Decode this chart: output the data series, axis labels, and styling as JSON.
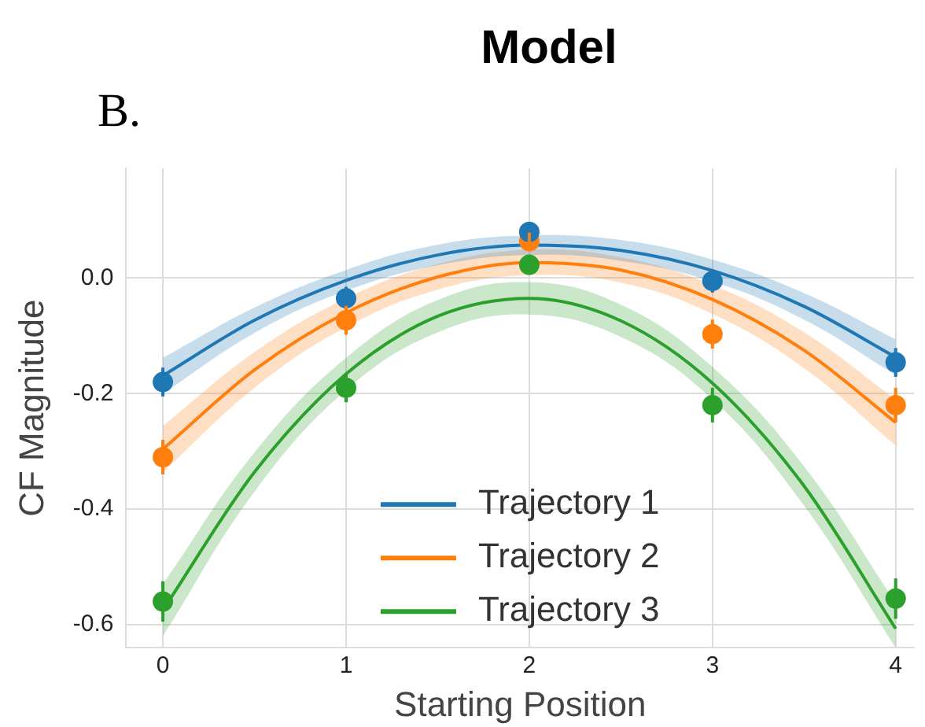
{
  "chart_data": {
    "type": "scatter",
    "title": "Model",
    "xlabel": "Starting Position",
    "ylabel": "CF Magnitude",
    "annotations": [
      "B."
    ],
    "xlim": [
      -0.2,
      4.1
    ],
    "ylim": [
      -0.64,
      0.19
    ],
    "xticks": [
      0,
      1,
      2,
      3,
      4
    ],
    "yticks": [
      -0.6,
      -0.4,
      -0.2,
      {
        "value": 0,
        "label": "0.0"
      }
    ],
    "grid": true,
    "legend": "bottom",
    "series": [
      {
        "color": "#1f77b4",
        "x": [
          0,
          1,
          2,
          3,
          4
        ],
        "values": [
          -0.18,
          -0.035,
          0.08,
          -0.005,
          -0.146
        ],
        "errors": [
          0.025,
          0.02,
          0.015,
          0.02,
          0.025
        ],
        "marker": "circle"
      },
      {
        "color": "#ff7f0e",
        "x": [
          0,
          1,
          2,
          3,
          4
        ],
        "values": [
          -0.31,
          -0.073,
          0.064,
          -0.097,
          -0.22
        ],
        "errors": [
          0.03,
          0.025,
          0.015,
          0.025,
          0.03
        ],
        "marker": "circle"
      },
      {
        "color": "#2ca02c",
        "x": [
          0,
          1,
          2,
          3,
          4
        ],
        "values": [
          -0.56,
          -0.19,
          0.023,
          -0.22,
          -0.555
        ],
        "errors": [
          0.035,
          0.025,
          0.015,
          0.03,
          0.035
        ],
        "marker": "circle"
      },
      {
        "type": "line",
        "name": "Trajectory 1",
        "color": "#1f77b4",
        "x": [
          0,
          0.5,
          1,
          1.5,
          2,
          2.5,
          3,
          3.5,
          4
        ],
        "values": [
          -0.169,
          -0.073,
          -0.004,
          0.04,
          0.057,
          0.048,
          0.013,
          -0.049,
          -0.137
        ],
        "lower": [
          -0.2,
          -0.095,
          -0.022,
          0.022,
          0.04,
          0.03,
          -0.006,
          -0.072,
          -0.168
        ],
        "upper": [
          -0.138,
          -0.051,
          0.014,
          0.058,
          0.074,
          0.066,
          0.032,
          -0.026,
          -0.106
        ],
        "marker": "none"
      },
      {
        "type": "line",
        "name": "Trajectory 2",
        "color": "#ff7f0e",
        "x": [
          0,
          0.5,
          1,
          1.5,
          2,
          2.5,
          3,
          3.5,
          4
        ],
        "values": [
          -0.296,
          -0.159,
          -0.06,
          0.002,
          0.027,
          0.014,
          -0.037,
          -0.125,
          -0.25
        ],
        "lower": [
          -0.336,
          -0.19,
          -0.085,
          -0.02,
          0.005,
          -0.008,
          -0.062,
          -0.156,
          -0.29
        ],
        "upper": [
          -0.256,
          -0.128,
          -0.035,
          0.024,
          0.049,
          0.036,
          -0.012,
          -0.094,
          -0.21
        ],
        "marker": "none"
      },
      {
        "type": "line",
        "name": "Trajectory 3",
        "color": "#2ca02c",
        "x": [
          0,
          0.5,
          1,
          1.5,
          2,
          2.5,
          3,
          3.5,
          4
        ],
        "values": [
          -0.575,
          -0.336,
          -0.166,
          -0.066,
          -0.035,
          -0.074,
          -0.182,
          -0.36,
          -0.607
        ],
        "lower": [
          -0.62,
          -0.37,
          -0.194,
          -0.094,
          -0.063,
          -0.102,
          -0.21,
          -0.394,
          -0.64
        ],
        "upper": [
          -0.53,
          -0.302,
          -0.138,
          -0.038,
          -0.007,
          -0.046,
          -0.154,
          -0.326,
          -0.562
        ],
        "marker": "none"
      }
    ]
  }
}
